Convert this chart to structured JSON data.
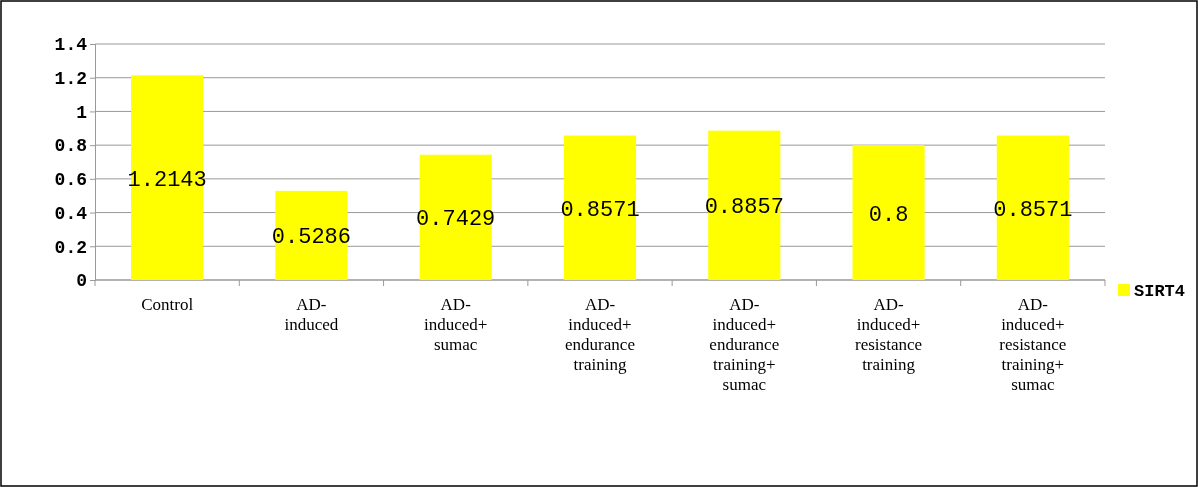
{
  "chart_data": {
    "type": "bar",
    "categories": [
      "Control",
      "AD-induced",
      "AD-induced+sumac",
      "AD-induced+endurance training",
      "AD-induced+endurance training+sumac",
      "AD-induced+resistance training",
      "AD-induced+resistance training+sumac"
    ],
    "series": [
      {
        "name": "SIRT4",
        "color": "#ffff00",
        "values": [
          1.2143,
          0.5286,
          0.7429,
          0.8571,
          0.8857,
          0.8,
          0.8571
        ]
      }
    ],
    "ylim": [
      0,
      1.4
    ],
    "yticks": [
      0,
      0.2,
      0.4,
      0.6,
      0.8,
      1,
      1.2,
      1.4
    ],
    "grid": "y",
    "legend": "right",
    "data_labels": true
  }
}
